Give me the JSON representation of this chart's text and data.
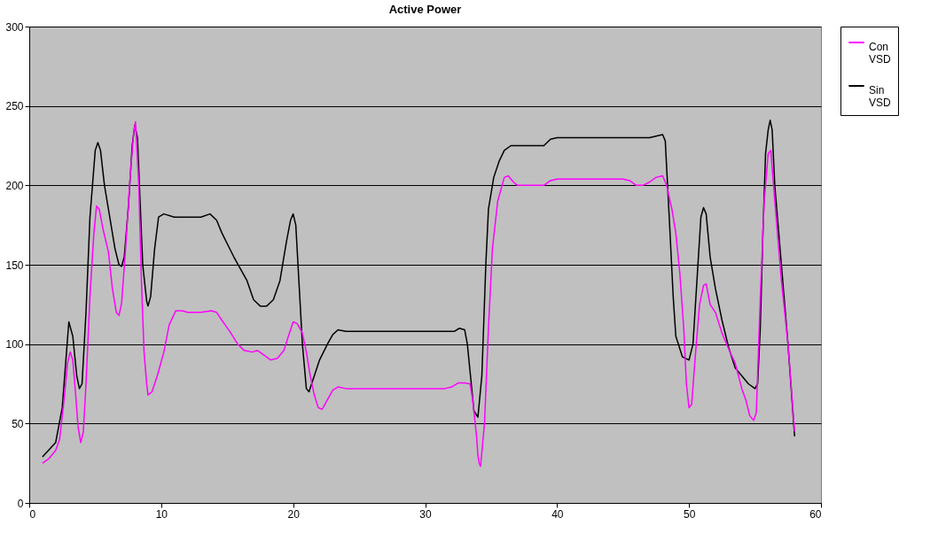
{
  "chart_data": {
    "type": "line",
    "title": "Active Power",
    "xlim": [
      0,
      60
    ],
    "xticks": [
      0,
      10,
      20,
      30,
      40,
      50,
      60
    ],
    "ylim": [
      0,
      300
    ],
    "yticks": [
      0,
      50,
      100,
      150,
      200,
      250,
      300
    ],
    "grid": "y",
    "legend": "right",
    "marker": "none",
    "line_style": "solid",
    "series": [
      {
        "name": "Con VSD",
        "color": "#ff00ff",
        "x": [
          1,
          1.5,
          2,
          2.3,
          2.6,
          2.9,
          3.1,
          3.3,
          3.5,
          3.7,
          3.9,
          4.1,
          4.3,
          4.6,
          4.9,
          5.1,
          5.3,
          5.6,
          6,
          6.3,
          6.6,
          6.8,
          7,
          7.3,
          7.6,
          7.9,
          8.05,
          8.3,
          8.5,
          8.7,
          8.9,
          9,
          9.3,
          9.7,
          10.2,
          10.6,
          11.1,
          11.6,
          12,
          13,
          13.8,
          14.2,
          14.6,
          15.2,
          15.8,
          16.3,
          16.9,
          17.3,
          17.8,
          18.3,
          18.8,
          19.3,
          19.6,
          20,
          20.3,
          20.7,
          21,
          21.3,
          21.6,
          21.9,
          22.2,
          22.6,
          23,
          23.4,
          24,
          30,
          31.5,
          32,
          32.5,
          33,
          33.4,
          33.6,
          33.9,
          34,
          34.1,
          34.2,
          34.5,
          34.8,
          35.1,
          35.5,
          36,
          36.3,
          36.7,
          37,
          39,
          39.5,
          40,
          45,
          45.5,
          46,
          46.5,
          47,
          47.5,
          48,
          48.3,
          48.7,
          49,
          49.3,
          49.6,
          49.8,
          50,
          50.2,
          50.5,
          50.8,
          51.1,
          51.3,
          51.6,
          52,
          52.5,
          53,
          53.5,
          54,
          54.3,
          54.6,
          54.9,
          55.1,
          55.4,
          55.7,
          56,
          56.2,
          56.5,
          57,
          57.5,
          58
        ],
        "values": [
          25,
          28,
          33,
          40,
          62,
          88,
          95,
          90,
          70,
          48,
          38,
          45,
          75,
          130,
          170,
          187,
          185,
          172,
          158,
          135,
          120,
          118,
          126,
          160,
          200,
          232,
          240,
          200,
          140,
          95,
          75,
          68,
          70,
          80,
          95,
          112,
          121,
          121,
          120,
          120,
          121,
          120,
          115,
          108,
          100,
          96,
          95,
          96,
          93,
          90,
          91,
          96,
          104,
          114,
          113,
          107,
          95,
          80,
          68,
          60,
          59,
          65,
          71,
          73,
          72,
          72,
          72,
          73,
          75.5,
          75.5,
          75,
          65,
          42,
          30,
          25,
          23,
          50,
          110,
          160,
          190,
          205,
          206,
          202,
          200,
          200,
          203,
          204,
          204,
          203,
          200,
          200,
          202,
          205,
          206,
          200,
          185,
          170,
          145,
          110,
          75,
          60,
          62,
          95,
          125,
          137,
          138,
          125,
          120,
          107,
          97,
          88,
          72,
          65,
          55,
          52,
          57,
          130,
          190,
          220,
          222,
          190,
          140,
          100,
          45
        ]
      },
      {
        "name": "Sin VSD",
        "color": "#000000",
        "x": [
          1,
          2,
          2.5,
          3,
          3.3,
          3.6,
          3.8,
          4,
          4.3,
          4.6,
          5,
          5.2,
          5.4,
          5.7,
          6,
          6.5,
          6.8,
          7,
          7.2,
          7.5,
          7.8,
          8,
          8.2,
          8.4,
          8.6,
          8.9,
          9,
          9.2,
          9.5,
          9.8,
          10.2,
          11,
          12,
          13,
          13.7,
          14.2,
          14.6,
          15.5,
          16.5,
          17,
          17.5,
          18,
          18.5,
          19,
          19.5,
          19.8,
          20,
          20.2,
          20.5,
          20.7,
          21,
          21.2,
          21.6,
          22,
          22.6,
          23,
          23.4,
          24,
          25,
          30,
          32.2,
          32.6,
          33,
          33.2,
          33.5,
          33.7,
          34,
          34.3,
          34.6,
          34.8,
          35.2,
          35.6,
          36,
          36.5,
          38,
          39,
          39.5,
          40,
          45,
          47,
          47.5,
          48,
          48.2,
          48.5,
          48.8,
          49,
          49.5,
          50,
          50.3,
          50.6,
          50.9,
          51.1,
          51.3,
          51.6,
          52,
          52.5,
          53,
          53.5,
          54,
          54.5,
          55,
          55.2,
          55.4,
          55.6,
          55.8,
          56,
          56.15,
          56.3,
          56.5,
          57,
          57.5,
          58
        ],
        "values": [
          29,
          38,
          60,
          114,
          105,
          80,
          72,
          75,
          120,
          180,
          222,
          227,
          222,
          200,
          185,
          160,
          150,
          149,
          155,
          185,
          225,
          238,
          230,
          190,
          150,
          127,
          124,
          130,
          160,
          180,
          182,
          180,
          180,
          180,
          182,
          178,
          170,
          155,
          140,
          128,
          124,
          124,
          128,
          140,
          165,
          178,
          182,
          175,
          130,
          100,
          72,
          70,
          80,
          90,
          100,
          106,
          109,
          108,
          108,
          108,
          108,
          110,
          109,
          100,
          75,
          58,
          54,
          80,
          150,
          185,
          205,
          215,
          222,
          225,
          225,
          225,
          229,
          230,
          230,
          230,
          231,
          232,
          228,
          180,
          130,
          105,
          92,
          90,
          100,
          140,
          180,
          186,
          182,
          155,
          135,
          115,
          98,
          85,
          80,
          75,
          72,
          75,
          110,
          170,
          220,
          235,
          241,
          235,
          200,
          150,
          100,
          42
        ]
      }
    ]
  }
}
